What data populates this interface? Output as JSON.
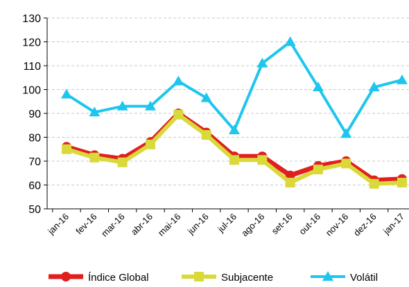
{
  "chart_data": {
    "type": "line",
    "categories": [
      "jan-16",
      "fev-16",
      "mar-16",
      "abr-16",
      "mai-16",
      "jun-16",
      "jul-16",
      "ago-16",
      "set-16",
      "out-16",
      "nov-16",
      "dez-16",
      "jan-17"
    ],
    "series": [
      {
        "name": "Índice Global",
        "color": "#e0201f",
        "marker": "circle",
        "values": [
          76,
          72.5,
          71,
          78,
          90,
          82,
          72,
          72,
          64,
          68,
          70,
          62,
          62.5
        ]
      },
      {
        "name": "Subjacente",
        "color": "#d9d93a",
        "marker": "square",
        "values": [
          75,
          71.5,
          69.5,
          77,
          89.5,
          81,
          70.5,
          70.5,
          61,
          66.5,
          69,
          60.5,
          61
        ]
      },
      {
        "name": "Volátil",
        "color": "#1ec6ee",
        "marker": "triangle",
        "values": [
          98,
          90.5,
          93,
          93,
          103.5,
          96.5,
          83,
          111,
          120,
          101,
          81.5,
          101,
          104
        ]
      }
    ],
    "ylim": [
      50,
      130
    ],
    "yticks": [
      50,
      60,
      70,
      80,
      90,
      100,
      110,
      120,
      130
    ],
    "grid": true,
    "legend": "bottom"
  }
}
